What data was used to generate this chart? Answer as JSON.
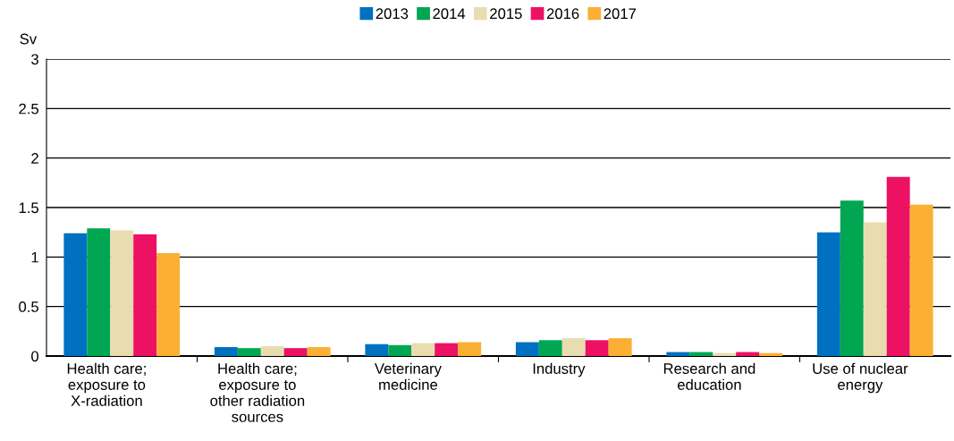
{
  "chart_data": {
    "type": "bar",
    "ylabel": "Sv",
    "categories": [
      "Health care; exposure to X-radiation",
      "Health care; exposure to other radiation sources",
      "Veterinary medicine",
      "Industry",
      "Research and education",
      "Use of nuclear energy"
    ],
    "series": [
      {
        "name": "2013",
        "color": "#0070c0",
        "values": [
          1.24,
          0.09,
          0.12,
          0.14,
          0.04,
          1.25
        ]
      },
      {
        "name": "2014",
        "color": "#00a651",
        "values": [
          1.29,
          0.08,
          0.11,
          0.16,
          0.04,
          1.57
        ]
      },
      {
        "name": "2015",
        "color": "#e9ddb0",
        "values": [
          1.27,
          0.1,
          0.13,
          0.18,
          0.03,
          1.35
        ]
      },
      {
        "name": "2016",
        "color": "#ed1164",
        "values": [
          1.23,
          0.08,
          0.13,
          0.16,
          0.04,
          1.81
        ]
      },
      {
        "name": "2017",
        "color": "#fbb034",
        "values": [
          1.04,
          0.09,
          0.14,
          0.18,
          0.03,
          1.53
        ]
      }
    ],
    "ylim": [
      0,
      3
    ],
    "yticks": [
      0,
      0.5,
      1,
      1.5,
      2,
      2.5,
      3
    ],
    "grid": "y",
    "legend": "top"
  }
}
